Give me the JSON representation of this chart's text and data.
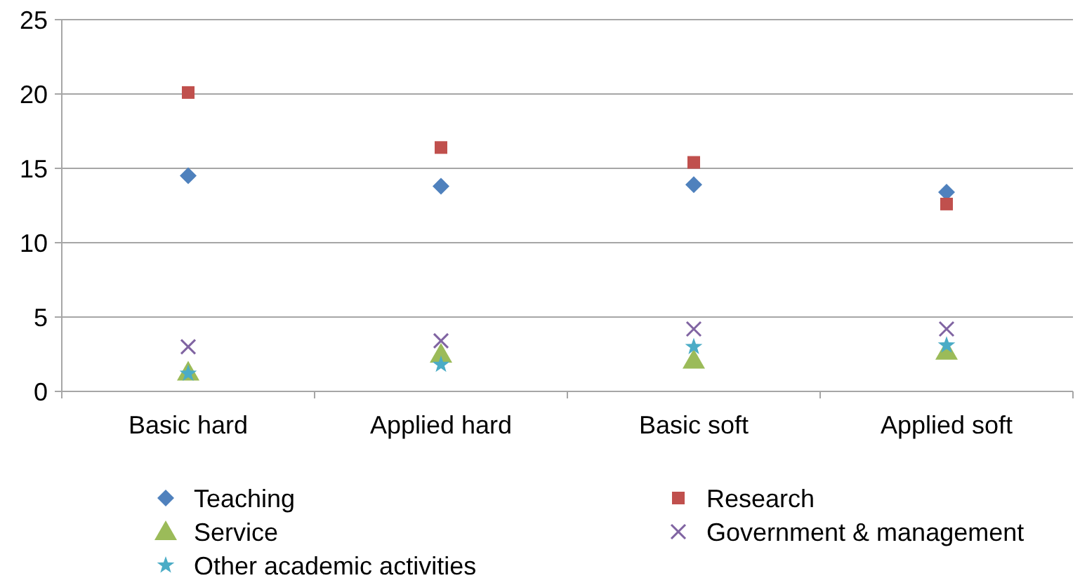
{
  "chart_data": {
    "type": "scatter",
    "categories": [
      "Basic hard",
      "Applied hard",
      "Basic soft",
      "Applied soft"
    ],
    "ylim": [
      0,
      25
    ],
    "yticks": [
      0,
      5,
      10,
      15,
      20,
      25
    ],
    "grid": "y",
    "legend": "bottom",
    "series": [
      {
        "name": "Teaching",
        "color": "#4f81bd",
        "marker": "diamond",
        "values": [
          14.5,
          13.8,
          13.9,
          13.4
        ]
      },
      {
        "name": "Research",
        "color": "#c0504d",
        "marker": "square",
        "values": [
          20.1,
          16.4,
          15.4,
          12.6
        ]
      },
      {
        "name": "Service",
        "color": "#9bbb59",
        "marker": "triangle",
        "values": [
          1.3,
          2.5,
          2.1,
          2.7
        ]
      },
      {
        "name": "Government & management",
        "color": "#8064a2",
        "marker": "cross",
        "values": [
          3.0,
          3.4,
          4.2,
          4.2
        ]
      },
      {
        "name": "Other academic activities",
        "color": "#4bacc6",
        "marker": "star",
        "values": [
          1.2,
          1.8,
          3.0,
          3.1
        ]
      }
    ]
  }
}
